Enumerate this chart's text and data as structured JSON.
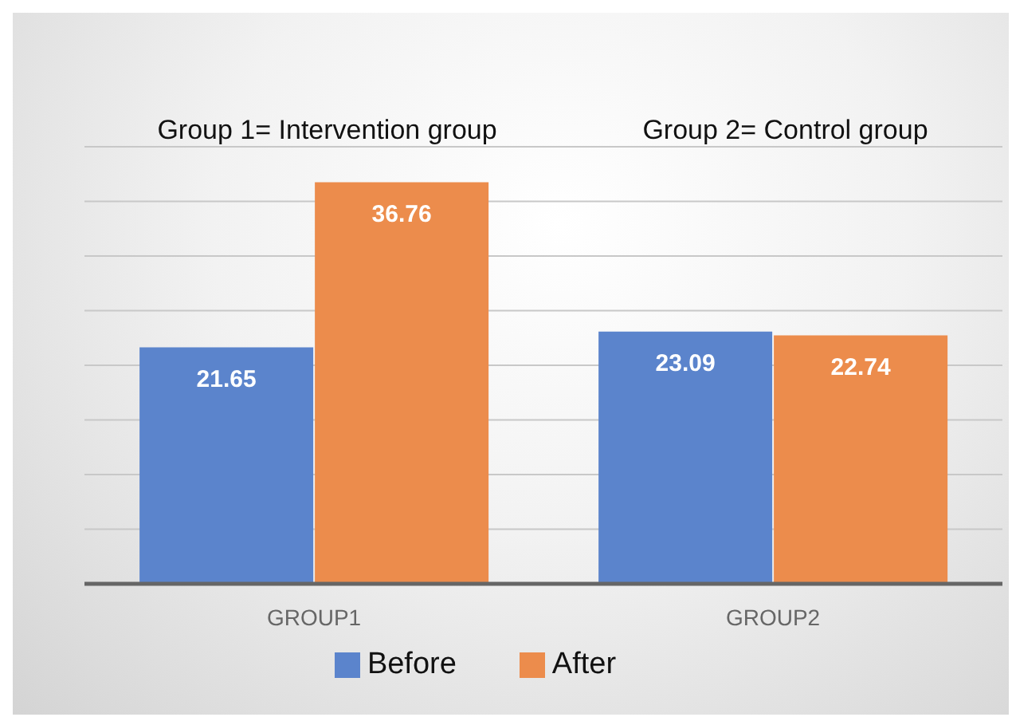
{
  "chart_data": {
    "type": "bar",
    "categories": [
      "GROUP1",
      "GROUP2"
    ],
    "series": [
      {
        "name": "Before",
        "color": "#5b84cc",
        "values": [
          21.65,
          23.09
        ]
      },
      {
        "name": "After",
        "color": "#ec8c4c",
        "values": [
          36.76,
          22.74
        ]
      }
    ],
    "grid": "y",
    "legend": "bottom",
    "data_labels": true,
    "tick_labels": "x",
    "annotations": [
      "Group 1= Intervention group",
      "Group 2= Control group"
    ]
  }
}
